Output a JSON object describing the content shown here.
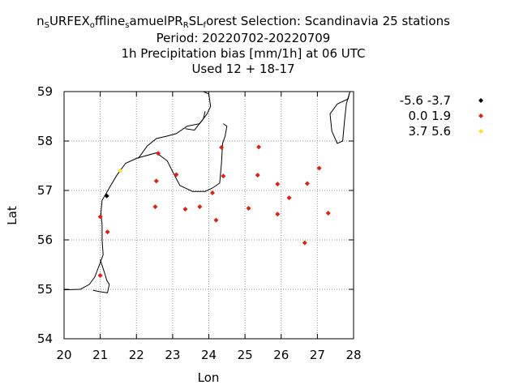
{
  "title": {
    "lines": [
      "Selection: Scandinavia     25 stations",
      "Period: 20220702-20220709",
      "1h Precipitation bias [mm/1h] at  06 UTC",
      "Used  12 + 18-17"
    ],
    "run_name_parts": [
      {
        "text": "n",
        "small": false
      },
      {
        "text": "S",
        "small": true
      },
      {
        "text": "URFEX",
        "small": false
      },
      {
        "text": "o",
        "small": true
      },
      {
        "text": "ffline",
        "small": false
      },
      {
        "text": "s",
        "small": true
      },
      {
        "text": "amuelPR",
        "small": false
      },
      {
        "text": "R",
        "small": true
      },
      {
        "text": "SL",
        "small": false
      },
      {
        "text": "f",
        "small": true
      },
      {
        "text": "orest",
        "small": false
      }
    ]
  },
  "chart_data": {
    "type": "scatter",
    "xlabel": "Lon",
    "ylabel": "Lat",
    "xlim": [
      20,
      28
    ],
    "ylim": [
      54,
      59
    ],
    "xticks": [
      20,
      21,
      22,
      23,
      24,
      25,
      26,
      27,
      28
    ],
    "yticks": [
      54,
      55,
      56,
      57,
      58,
      59
    ],
    "grid": true,
    "legend": "right",
    "series": [
      {
        "name": "-5.6 -3.7",
        "color": "#000000",
        "points": [
          [
            21.18,
            56.89
          ]
        ]
      },
      {
        "name": "0.0 1.9",
        "color": "#dd2211",
        "points": [
          [
            22.6,
            57.75
          ],
          [
            22.55,
            57.19
          ],
          [
            23.1,
            57.32
          ],
          [
            22.52,
            56.67
          ],
          [
            23.35,
            56.62
          ],
          [
            23.75,
            56.67
          ],
          [
            24.1,
            56.95
          ],
          [
            24.2,
            56.4
          ],
          [
            24.35,
            57.87
          ],
          [
            24.4,
            57.29
          ],
          [
            25.1,
            56.64
          ],
          [
            25.35,
            57.31
          ],
          [
            25.38,
            57.88
          ],
          [
            25.9,
            57.13
          ],
          [
            25.9,
            56.52
          ],
          [
            26.22,
            56.85
          ],
          [
            26.65,
            55.94
          ],
          [
            26.72,
            57.14
          ],
          [
            27.05,
            57.45
          ],
          [
            27.3,
            56.54
          ],
          [
            21.0,
            56.47
          ],
          [
            21.2,
            56.16
          ],
          [
            21.0,
            55.28
          ]
        ]
      },
      {
        "name": "3.7 5.6",
        "color": "#ffdd33",
        "points": [
          [
            21.55,
            57.4
          ]
        ]
      }
    ],
    "coastlines": [
      [
        [
          20.0,
          54.99
        ],
        [
          20.45,
          55.0
        ],
        [
          20.7,
          55.1
        ],
        [
          20.85,
          55.25
        ],
        [
          20.98,
          55.5
        ],
        [
          21.08,
          55.7
        ],
        [
          21.05,
          56.0
        ],
        [
          21.05,
          56.3
        ],
        [
          21.02,
          56.55
        ],
        [
          21.05,
          56.8
        ],
        [
          21.25,
          57.05
        ],
        [
          21.45,
          57.3
        ],
        [
          21.7,
          57.55
        ],
        [
          22.0,
          57.65
        ],
        [
          22.55,
          57.76
        ],
        [
          22.85,
          57.6
        ],
        [
          23.0,
          57.38
        ],
        [
          23.2,
          57.1
        ],
        [
          23.55,
          56.98
        ],
        [
          23.9,
          56.98
        ],
        [
          24.1,
          57.05
        ],
        [
          24.3,
          57.15
        ],
        [
          24.35,
          57.55
        ],
        [
          24.38,
          57.95
        ],
        [
          24.45,
          58.1
        ],
        [
          24.5,
          58.3
        ],
        [
          24.4,
          58.35
        ]
      ],
      [
        [
          22.05,
          57.65
        ],
        [
          22.3,
          57.9
        ],
        [
          22.55,
          58.05
        ],
        [
          22.85,
          58.1
        ],
        [
          23.1,
          58.15
        ],
        [
          23.4,
          58.3
        ],
        [
          23.75,
          58.35
        ],
        [
          23.95,
          58.55
        ],
        [
          24.05,
          58.7
        ],
        [
          24.0,
          58.95
        ],
        [
          23.85,
          59.0
        ]
      ],
      [
        [
          23.35,
          58.25
        ],
        [
          23.6,
          58.22
        ],
        [
          23.85,
          58.45
        ],
        [
          23.9,
          58.6
        ]
      ],
      [
        [
          21.0,
          55.6
        ],
        [
          21.12,
          55.33
        ],
        [
          21.18,
          55.18
        ],
        [
          21.25,
          55.1
        ],
        [
          21.2,
          54.93
        ],
        [
          21.0,
          54.95
        ],
        [
          20.8,
          54.98
        ]
      ],
      [
        [
          27.9,
          59.0
        ],
        [
          27.85,
          58.85
        ],
        [
          27.55,
          58.75
        ],
        [
          27.35,
          58.55
        ],
        [
          27.4,
          58.2
        ],
        [
          27.55,
          57.95
        ],
        [
          27.7,
          58.0
        ],
        [
          27.75,
          58.4
        ],
        [
          27.8,
          58.75
        ],
        [
          27.9,
          59.0
        ]
      ]
    ]
  }
}
